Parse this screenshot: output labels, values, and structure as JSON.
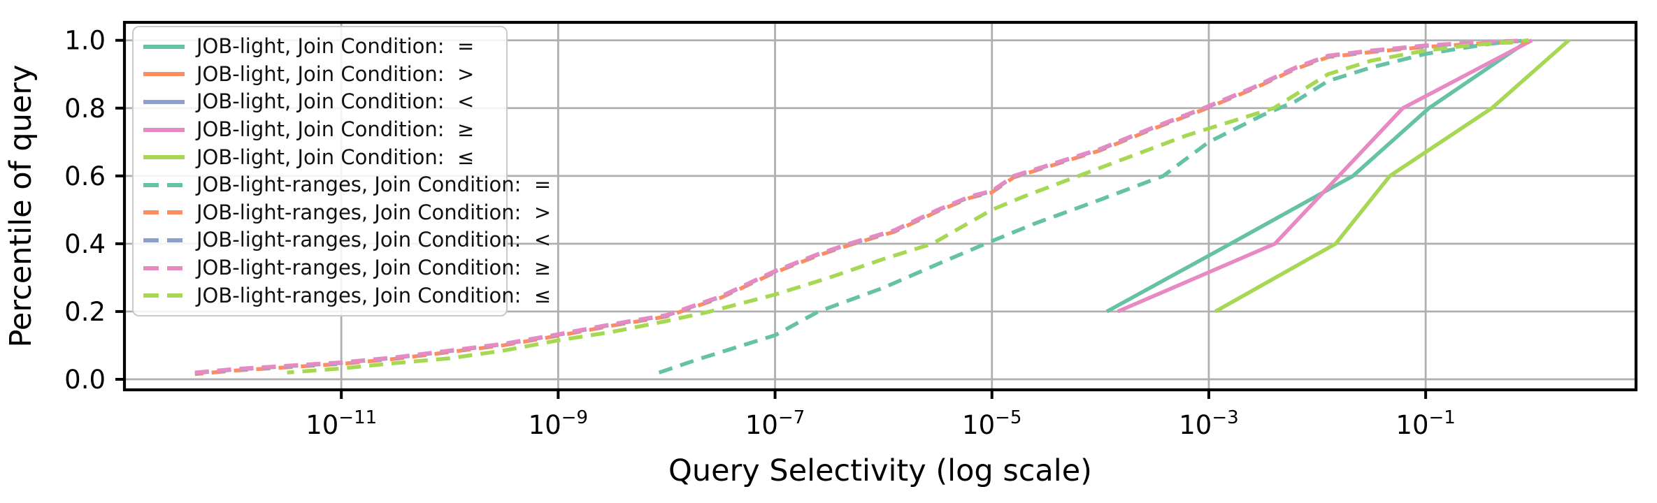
{
  "figure": {
    "background": "#ffffff",
    "grid_color": "#b0b0b0",
    "spine_color": "#000000",
    "text_color": "#000000",
    "legend_border_color": "#c9c9c9"
  },
  "x_axis": {
    "label": "Query Selectivity (log scale)",
    "scale": "log10",
    "ticks": [
      {
        "log": -11,
        "mantissa": "10",
        "exponent": "−11"
      },
      {
        "log": -9,
        "mantissa": "10",
        "exponent": "−9"
      },
      {
        "log": -7,
        "mantissa": "10",
        "exponent": "−7"
      },
      {
        "log": -5,
        "mantissa": "10",
        "exponent": "−5"
      },
      {
        "log": -3,
        "mantissa": "10",
        "exponent": "−3"
      },
      {
        "log": -1,
        "mantissa": "10",
        "exponent": "−1"
      }
    ]
  },
  "y_axis": {
    "label": "Percentile of query",
    "ticks": [
      {
        "value": 0.0,
        "label": "0.0"
      },
      {
        "value": 0.2,
        "label": "0.2"
      },
      {
        "value": 0.4,
        "label": "0.4"
      },
      {
        "value": 0.6,
        "label": "0.6"
      },
      {
        "value": 0.8,
        "label": "0.8"
      },
      {
        "value": 1.0,
        "label": "1.0"
      }
    ]
  },
  "legend": {
    "position": "upper left"
  },
  "chart_data": {
    "type": "line",
    "x_scale": "log10",
    "xlabel": "Query Selectivity (log scale)",
    "ylabel": "Percentile of query",
    "xlim_log10": [
      -13,
      0.94
    ],
    "ylim": [
      -0.031,
      1.053
    ],
    "grid": true,
    "legend_position": "upper left",
    "note": "points are [log10(query selectivity), percentile]; dashed 'ranges >' and 'ranges <' curves lie almost exactly under the 'ranges ≥' curve (orange peeks out below the pink dashes); solid '>' and '<' have no visible curve",
    "series": [
      {
        "id": "job-light-eq",
        "label": "JOB-light, Join Condition:  =",
        "color": "#66c2a5",
        "style": "solid",
        "z": 1,
        "points": [
          [
            -3.94,
            0.2
          ],
          [
            -2.8,
            0.4
          ],
          [
            -1.67,
            0.6
          ],
          [
            -0.97,
            0.8
          ],
          [
            -0.05,
            1.0
          ]
        ]
      },
      {
        "id": "job-light-gt",
        "label": "JOB-light, Join Condition:  >",
        "color": "#fc8d62",
        "style": "solid",
        "z": 2,
        "points": []
      },
      {
        "id": "job-light-lt",
        "label": "JOB-light, Join Condition:  <",
        "color": "#8da0cb",
        "style": "solid",
        "z": 3,
        "points": []
      },
      {
        "id": "job-light-geq",
        "label": "JOB-light, Join Condition:  ≥",
        "color": "#e78ac3",
        "style": "solid",
        "z": 4,
        "points": [
          [
            -3.84,
            0.2
          ],
          [
            -2.39,
            0.4
          ],
          [
            -1.8,
            0.6
          ],
          [
            -1.21,
            0.8
          ],
          [
            -0.02,
            1.0
          ]
        ]
      },
      {
        "id": "job-light-leq",
        "label": "JOB-light, Join Condition:  ≤",
        "color": "#a6d854",
        "style": "solid",
        "z": 5,
        "points": [
          [
            -2.94,
            0.2
          ],
          [
            -1.83,
            0.4
          ],
          [
            -1.33,
            0.6
          ],
          [
            -0.39,
            0.8
          ],
          [
            0.32,
            1.0
          ]
        ]
      },
      {
        "id": "job-light-ranges-eq",
        "label": "JOB-light-ranges, Join Condition:  =",
        "color": "#66c2a5",
        "style": "dashed",
        "z": 6,
        "points": [
          [
            -8.07,
            0.02
          ],
          [
            -7.7,
            0.06
          ],
          [
            -7.3,
            0.1
          ],
          [
            -7.0,
            0.13
          ],
          [
            -6.6,
            0.2
          ],
          [
            -6.0,
            0.27
          ],
          [
            -5.5,
            0.34
          ],
          [
            -5.06,
            0.4
          ],
          [
            -4.6,
            0.46
          ],
          [
            -4.0,
            0.53
          ],
          [
            -3.42,
            0.6
          ],
          [
            -3.0,
            0.7
          ],
          [
            -2.5,
            0.78
          ],
          [
            -2.2,
            0.82
          ],
          [
            -1.9,
            0.88
          ],
          [
            -1.5,
            0.92
          ],
          [
            -1.0,
            0.96
          ],
          [
            -0.7,
            0.975
          ],
          [
            -0.4,
            0.99
          ],
          [
            -0.07,
            1.0
          ]
        ]
      },
      {
        "id": "job-light-ranges-gt",
        "label": "JOB-light-ranges, Join Condition:  >",
        "color": "#fc8d62",
        "style": "dashed",
        "z": 7,
        "points_same_as": "job-light-ranges-geq",
        "overlap_hint": "peeks-below-ranges-geq"
      },
      {
        "id": "job-light-ranges-lt",
        "label": "JOB-light-ranges, Join Condition:  <",
        "color": "#8da0cb",
        "style": "dashed",
        "z": 8,
        "points_same_as": "job-light-ranges-geq",
        "overlap_hint": "fully-hidden-behind-ranges-geq"
      },
      {
        "id": "job-light-ranges-geq",
        "label": "JOB-light-ranges, Join Condition:  ≥",
        "color": "#e78ac3",
        "style": "dashed",
        "z": 9,
        "points": [
          [
            -12.35,
            0.02
          ],
          [
            -12.0,
            0.03
          ],
          [
            -11.5,
            0.04
          ],
          [
            -11.0,
            0.05
          ],
          [
            -10.5,
            0.065
          ],
          [
            -10.0,
            0.085
          ],
          [
            -9.5,
            0.105
          ],
          [
            -9.0,
            0.133
          ],
          [
            -8.5,
            0.163
          ],
          [
            -8.0,
            0.19
          ],
          [
            -7.5,
            0.245
          ],
          [
            -7.0,
            0.32
          ],
          [
            -6.6,
            0.37
          ],
          [
            -6.32,
            0.4
          ],
          [
            -5.9,
            0.44
          ],
          [
            -5.5,
            0.5
          ],
          [
            -5.2,
            0.54
          ],
          [
            -5.0,
            0.556
          ],
          [
            -4.8,
            0.6
          ],
          [
            -4.4,
            0.64
          ],
          [
            -4.0,
            0.68
          ],
          [
            -3.5,
            0.745
          ],
          [
            -3.05,
            0.8
          ],
          [
            -2.6,
            0.86
          ],
          [
            -2.2,
            0.92
          ],
          [
            -1.9,
            0.955
          ],
          [
            -1.5,
            0.97
          ],
          [
            -1.0,
            0.985
          ],
          [
            -0.5,
            0.995
          ],
          [
            -0.05,
            1.0
          ]
        ]
      },
      {
        "id": "job-light-ranges-leq",
        "label": "JOB-light-ranges, Join Condition:  ≤",
        "color": "#a6d854",
        "style": "dashed",
        "z": 10,
        "points": [
          [
            -11.5,
            0.02
          ],
          [
            -11.0,
            0.032
          ],
          [
            -10.5,
            0.048
          ],
          [
            -10.0,
            0.062
          ],
          [
            -9.5,
            0.085
          ],
          [
            -9.0,
            0.115
          ],
          [
            -8.5,
            0.14
          ],
          [
            -8.0,
            0.172
          ],
          [
            -7.6,
            0.2
          ],
          [
            -7.0,
            0.25
          ],
          [
            -6.5,
            0.3
          ],
          [
            -6.0,
            0.355
          ],
          [
            -5.55,
            0.4
          ],
          [
            -5.0,
            0.5
          ],
          [
            -4.7,
            0.54
          ],
          [
            -4.2,
            0.6
          ],
          [
            -3.7,
            0.66
          ],
          [
            -3.2,
            0.72
          ],
          [
            -2.8,
            0.76
          ],
          [
            -2.4,
            0.8
          ],
          [
            -1.9,
            0.9
          ],
          [
            -1.5,
            0.94
          ],
          [
            -1.0,
            0.97
          ],
          [
            -0.6,
            0.985
          ],
          [
            -0.05,
            1.0
          ]
        ]
      }
    ]
  }
}
